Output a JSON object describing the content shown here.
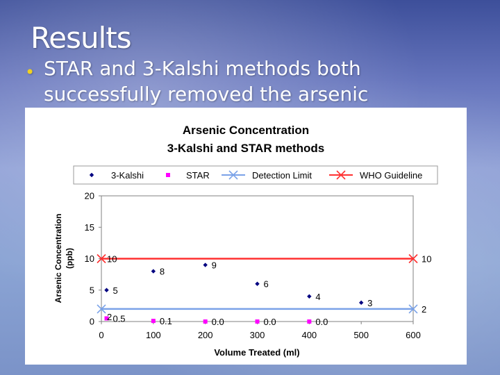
{
  "slide": {
    "title": "Results",
    "bullet": "STAR and 3-Kalshi methods both successfully removed the arsenic"
  },
  "colors": {
    "kalshi": "#000080",
    "star": "#ff00ff",
    "detection": "#7aa2e8",
    "who": "#ff3030",
    "bullet": "#f0d020"
  },
  "chart_data": {
    "type": "scatter",
    "title_line1": "Arsenic Concentration",
    "title_line2": "3-Kalshi and STAR methods",
    "xlabel": "Volume Treated (ml)",
    "ylabel_line1": "Arsenic Concentration",
    "ylabel_line2": "(ppb)",
    "xlim": [
      0,
      600
    ],
    "ylim": [
      0,
      20
    ],
    "xticks": [
      0,
      100,
      200,
      300,
      400,
      500,
      600
    ],
    "yticks": [
      0,
      5,
      10,
      15,
      20
    ],
    "grid": false,
    "legend_position": "top",
    "series": [
      {
        "name": "3-Kalshi",
        "marker": "diamond",
        "color": "#000080",
        "points": [
          [
            10,
            5
          ],
          [
            100,
            8
          ],
          [
            200,
            9
          ],
          [
            300,
            6
          ],
          [
            400,
            4
          ],
          [
            500,
            3
          ]
        ],
        "labels": [
          "5",
          "8",
          "9",
          "6",
          "4",
          "3"
        ]
      },
      {
        "name": "STAR",
        "marker": "square",
        "color": "#ff00ff",
        "points": [
          [
            10,
            0.5
          ],
          [
            100,
            0.1
          ],
          [
            200,
            0.0
          ],
          [
            300,
            0.0
          ],
          [
            400,
            0.0
          ]
        ],
        "labels": [
          "0.5",
          "0.1",
          "0.0",
          "0.0",
          "0.0"
        ]
      },
      {
        "name": "Detection Limit",
        "marker": "x",
        "line": true,
        "color": "#7aa2e8",
        "points": [
          [
            0,
            2
          ],
          [
            600,
            2
          ]
        ],
        "labels": [
          "2",
          "2"
        ]
      },
      {
        "name": "WHO Guideline",
        "marker": "x",
        "line": true,
        "color": "#ff3030",
        "points": [
          [
            0,
            10
          ],
          [
            600,
            10
          ]
        ],
        "labels": [
          "10",
          "10"
        ]
      }
    ]
  }
}
